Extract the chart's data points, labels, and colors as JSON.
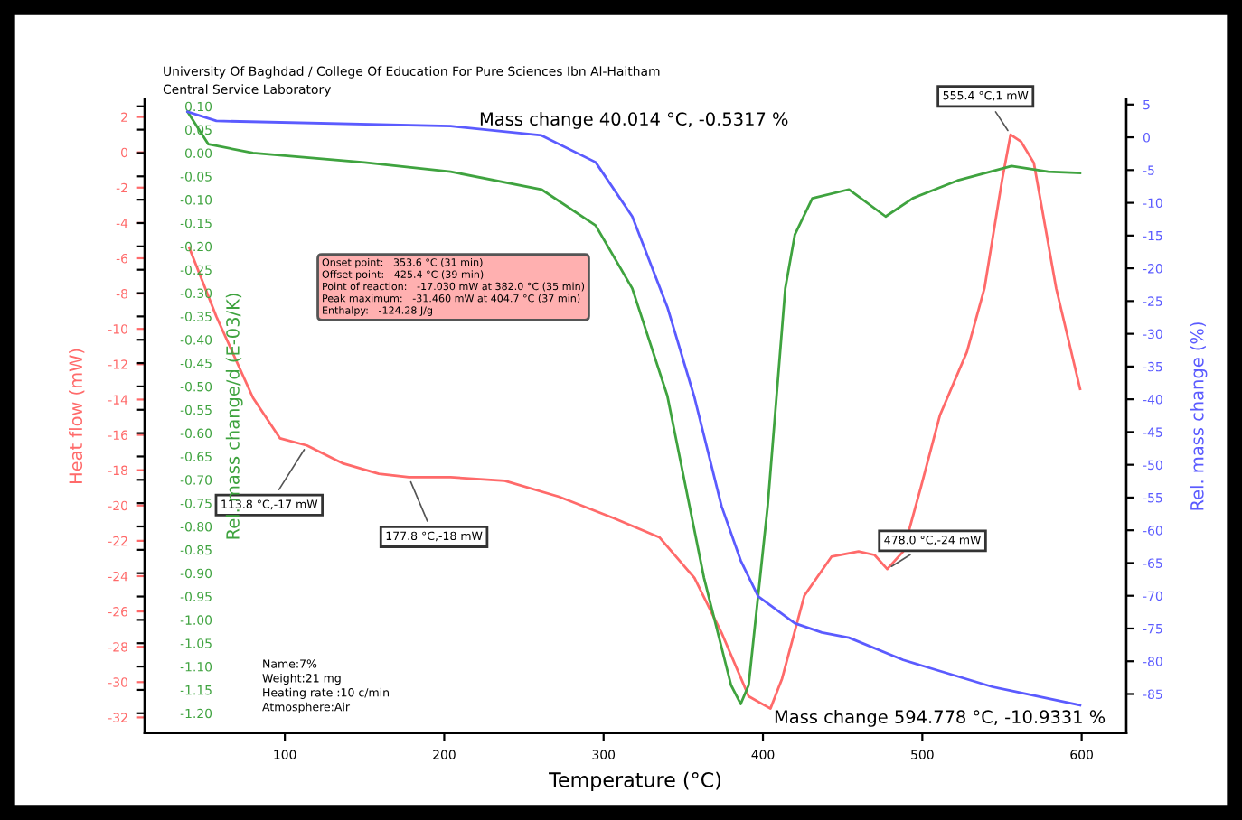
{
  "chart_data": {
    "type": "line",
    "title": "University Of Baghdad / College Of Education For Pure Sciences Ibn Al-Haitham",
    "subtitle": "Central Service Laboratory",
    "xlabel": "Temperature (°C)",
    "ylabel": "Heat flow (mW)",
    "y2label": "Rel. mass change/d (E-03/K)",
    "y3label": "Rel. mass change (%)",
    "xlim": [
      12,
      628
    ],
    "xticks": [
      100,
      200,
      300,
      400,
      500,
      600
    ],
    "ylim": [
      -32.9,
      3.0
    ],
    "yticks": [
      2,
      0,
      -2,
      -4,
      -6,
      -8,
      -10,
      -12,
      -14,
      -16,
      -18,
      -20,
      -22,
      -24,
      -26,
      -28,
      -30,
      -32
    ],
    "y2lim": [
      -1.243,
      0.115
    ],
    "y2ticks": [
      {
        "value": 0.1,
        "label": "0.10"
      },
      {
        "value": 0.05,
        "label": "0.05"
      },
      {
        "value": 0.0,
        "label": "0.00"
      },
      {
        "value": -0.05,
        "label": "-0.05"
      },
      {
        "value": -0.1,
        "label": "-0.10"
      },
      {
        "value": -0.15,
        "label": "-0.15"
      },
      {
        "value": -0.2,
        "label": "-0.20"
      },
      {
        "value": -0.25,
        "label": "-0.25"
      },
      {
        "value": -0.3,
        "label": "-0.30"
      },
      {
        "value": -0.35,
        "label": "-0.35"
      },
      {
        "value": -0.4,
        "label": "-0.40"
      },
      {
        "value": -0.45,
        "label": "-0.45"
      },
      {
        "value": -0.5,
        "label": "-0.50"
      },
      {
        "value": -0.55,
        "label": "-0.55"
      },
      {
        "value": -0.6,
        "label": "-0.60"
      },
      {
        "value": -0.65,
        "label": "-0.65"
      },
      {
        "value": -0.7,
        "label": "-0.70"
      },
      {
        "value": -0.75,
        "label": "-0.75"
      },
      {
        "value": -0.8,
        "label": "-0.80"
      },
      {
        "value": -0.85,
        "label": "-0.85"
      },
      {
        "value": -0.9,
        "label": "-0.90"
      },
      {
        "value": -0.95,
        "label": "-0.95"
      },
      {
        "value": -1.0,
        "label": "-1.00"
      },
      {
        "value": -1.05,
        "label": "-1.05"
      },
      {
        "value": -1.1,
        "label": "-1.10"
      },
      {
        "value": -1.15,
        "label": "-1.15"
      },
      {
        "value": -1.2,
        "label": "-1.20"
      }
    ],
    "y3lim": [
      -91,
      5.8
    ],
    "y3ticks": [
      5,
      0,
      -5,
      -10,
      -15,
      -20,
      -25,
      -30,
      -35,
      -40,
      -45,
      -50,
      -55,
      -60,
      -65,
      -70,
      -75,
      -80,
      -85
    ],
    "series": [
      {
        "axis": "y",
        "color": "#ff6a6a",
        "x": [
          40,
          57,
          80,
          97,
          113.8,
          136,
          159,
          177.8,
          204,
          238,
          272,
          306,
          335,
          357,
          374,
          391,
          404.7,
          412,
          426,
          443,
          460,
          470,
          478.0,
          488,
          499,
          511,
          528,
          539,
          550,
          555.4,
          562,
          570,
          584,
          599
        ],
        "values": [
          -5.4,
          -9.3,
          -13.9,
          -16.2,
          -16.6,
          -17.6,
          -18.2,
          -18.4,
          -18.4,
          -18.6,
          -19.5,
          -20.7,
          -21.8,
          -24.1,
          -27.2,
          -30.8,
          -31.5,
          -29.8,
          -25.1,
          -22.9,
          -22.6,
          -22.8,
          -23.6,
          -22.6,
          -19.0,
          -14.9,
          -11.3,
          -7.7,
          -1.6,
          1.0,
          0.6,
          -0.6,
          -7.7,
          -13.4
        ]
      },
      {
        "axis": "y2",
        "color": "#3fa33f",
        "x": [
          39,
          52,
          80,
          150,
          204,
          261,
          295,
          318,
          340,
          363,
          380,
          386,
          391,
          403,
          414,
          420,
          431,
          454,
          477,
          494,
          522,
          556,
          579,
          599
        ],
        "values": [
          0.088,
          0.019,
          0.0,
          -0.02,
          -0.04,
          -0.078,
          -0.155,
          -0.29,
          -0.52,
          -0.91,
          -1.14,
          -1.18,
          -1.14,
          -0.755,
          -0.29,
          -0.175,
          -0.097,
          -0.078,
          -0.136,
          -0.097,
          -0.059,
          -0.028,
          -0.04,
          -0.043
        ]
      },
      {
        "axis": "y3",
        "color": "#5b5bff",
        "x": [
          39,
          57,
          204,
          261,
          295,
          318,
          340,
          357,
          374,
          386,
          397,
          420,
          437,
          454,
          488,
          544,
          599
        ],
        "values": [
          3.9,
          2.5,
          1.7,
          0.3,
          -3.8,
          -12.1,
          -25.9,
          -39.7,
          -56.3,
          -64.6,
          -70.1,
          -74.2,
          -75.6,
          -76.4,
          -79.8,
          -83.9,
          -86.7
        ]
      }
    ],
    "annotations": [
      "Mass change 40.014 °C, -0.5317 %",
      "Onset point:   353.6 °C (31 min)\nOffset point:   425.4 °C (39 min)\nPoint of reaction:   -17.030 mW at 382.0 °C (35 min)\nPeak maximum:   -31.460 mW at 404.7 °C (37 min)\nEnthalpy:   -124.28 J/g",
      "Mass change 594.778 °C, -10.9331 %",
      "Name:7%\nWeight:21 mg\nHeating rate :10 c/min\nAtmosphere:Air",
      {
        "text": "555.4 °C,1 mW",
        "x": 555.4,
        "y": 1.0
      },
      {
        "text": "113.8 °C,-17 mW",
        "x": 113.8,
        "y": -16.6
      },
      {
        "text": "177.8 °C,-18 mW",
        "x": 177.8,
        "y": -18.4
      },
      {
        "text": "478.0 °C,-24 mW",
        "x": 478.0,
        "y": -23.6
      }
    ],
    "legend": false,
    "grid": false
  }
}
